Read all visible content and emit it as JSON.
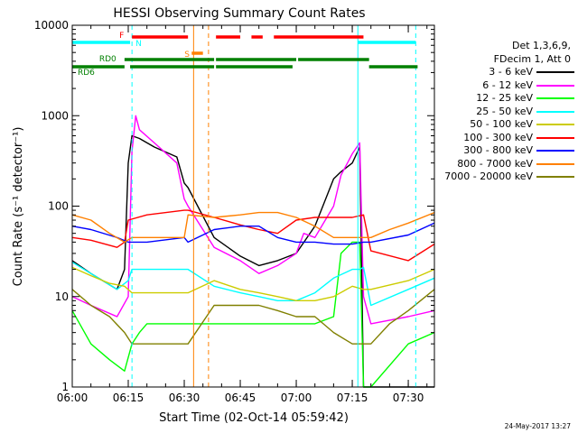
{
  "chart_data": {
    "type": "line",
    "title": "HESSI Observing Summary Count Rates",
    "xlabel": "Start Time (02-Oct-14 05:59:42)",
    "ylabel": "Count Rate (s⁻¹ detector⁻¹)",
    "y_scale": "log",
    "ylim": [
      1,
      10000
    ],
    "xlim_minutes": [
      0,
      97
    ],
    "x_ticks": [
      {
        "m": 0,
        "label": "06:00"
      },
      {
        "m": 15,
        "label": "06:15"
      },
      {
        "m": 30,
        "label": "06:30"
      },
      {
        "m": 45,
        "label": "06:45"
      },
      {
        "m": 60,
        "label": "07:00"
      },
      {
        "m": 75,
        "label": "07:15"
      },
      {
        "m": 90,
        "label": "07:30"
      }
    ],
    "y_ticks": [
      {
        "v": 1,
        "label": "1"
      },
      {
        "v": 10,
        "label": "10"
      },
      {
        "v": 100,
        "label": "100"
      },
      {
        "v": 1000,
        "label": "1000"
      },
      {
        "v": 10000,
        "label": "10000"
      }
    ],
    "legend_header": [
      "Det 1,3,6,9,",
      "FDecim 1, Att 0"
    ],
    "series": [
      {
        "name": "3 - 6 keV",
        "color": "#000000",
        "x": [
          0,
          5,
          12,
          14,
          15,
          16,
          18,
          22,
          28,
          30,
          31,
          38,
          45,
          50,
          55,
          60,
          65,
          70,
          72,
          75,
          77,
          78,
          79,
          80,
          81,
          90,
          97
        ],
        "y": [
          25,
          18,
          12,
          20,
          300,
          600,
          560,
          450,
          350,
          180,
          160,
          45,
          28,
          22,
          25,
          30,
          60,
          200,
          240,
          300,
          450,
          1,
          1,
          1,
          1,
          1,
          1
        ]
      },
      {
        "name": "6 - 12 keV",
        "color": "#ff00ff",
        "x": [
          0,
          5,
          12,
          15,
          16,
          17,
          18,
          22,
          28,
          30,
          31,
          38,
          45,
          50,
          55,
          60,
          62,
          65,
          70,
          72,
          75,
          77,
          78,
          80,
          90,
          97
        ],
        "y": [
          10,
          8,
          6,
          10,
          400,
          1000,
          700,
          500,
          300,
          120,
          100,
          35,
          25,
          18,
          22,
          30,
          50,
          45,
          100,
          220,
          380,
          500,
          10,
          5,
          6,
          7
        ]
      },
      {
        "name": "12 - 25 keV",
        "color": "#00ff00",
        "x": [
          0,
          5,
          10,
          14,
          16,
          18,
          20,
          30,
          31,
          38,
          45,
          50,
          55,
          60,
          65,
          70,
          72,
          75,
          77,
          78,
          80,
          90,
          97
        ],
        "y": [
          7,
          3,
          2,
          1.5,
          3,
          4,
          5,
          5,
          5,
          5,
          5,
          5,
          5,
          5,
          5,
          6,
          30,
          40,
          40,
          1,
          1,
          3,
          4
        ]
      },
      {
        "name": "25 - 50 keV",
        "color": "#00ffff",
        "x": [
          0,
          5,
          12,
          15,
          16,
          25,
          30,
          31,
          38,
          45,
          50,
          55,
          60,
          65,
          70,
          75,
          77,
          78,
          80,
          90,
          97
        ],
        "y": [
          24,
          18,
          12,
          15,
          20,
          20,
          20,
          20,
          13,
          11,
          10,
          9,
          9,
          11,
          16,
          20,
          20,
          21,
          8,
          12,
          16
        ]
      },
      {
        "name": "50 - 100 keV",
        "color": "#cccc00",
        "x": [
          0,
          5,
          10,
          14,
          16,
          20,
          30,
          31,
          38,
          45,
          50,
          55,
          60,
          65,
          70,
          75,
          78,
          80,
          90,
          97
        ],
        "y": [
          21,
          17,
          14,
          13,
          11,
          11,
          11,
          11,
          15,
          12,
          11,
          10,
          9,
          9,
          10,
          13,
          12,
          12,
          15,
          20
        ]
      },
      {
        "name": "100 - 300 keV",
        "color": "#ff0000",
        "x": [
          0,
          5,
          12,
          14,
          15,
          20,
          30,
          31,
          38,
          45,
          50,
          55,
          60,
          65,
          70,
          75,
          78,
          80,
          90,
          97
        ],
        "y": [
          45,
          42,
          35,
          40,
          70,
          80,
          90,
          90,
          75,
          62,
          55,
          50,
          70,
          75,
          75,
          75,
          80,
          32,
          25,
          38
        ]
      },
      {
        "name": "300 - 800 keV",
        "color": "#0000ff",
        "x": [
          0,
          5,
          12,
          15,
          16,
          20,
          30,
          31,
          38,
          45,
          50,
          55,
          60,
          65,
          70,
          75,
          78,
          80,
          90,
          97
        ],
        "y": [
          60,
          55,
          45,
          40,
          40,
          40,
          45,
          40,
          55,
          60,
          60,
          45,
          40,
          40,
          38,
          38,
          40,
          40,
          48,
          65
        ]
      },
      {
        "name": "800 - 7000 keV",
        "color": "#ff8000",
        "x": [
          0,
          5,
          10,
          14,
          16,
          20,
          25,
          30,
          31,
          38,
          45,
          50,
          55,
          60,
          65,
          70,
          75,
          78,
          80,
          85,
          90,
          97
        ],
        "y": [
          80,
          70,
          50,
          40,
          45,
          45,
          45,
          45,
          80,
          75,
          80,
          85,
          85,
          75,
          60,
          45,
          45,
          45,
          45,
          55,
          65,
          85
        ]
      },
      {
        "name": "7000 - 20000 keV",
        "color": "#808000",
        "x": [
          0,
          5,
          10,
          14,
          16,
          20,
          30,
          31,
          38,
          45,
          50,
          55,
          60,
          65,
          70,
          75,
          78,
          80,
          85,
          90,
          97
        ],
        "y": [
          12,
          8,
          6,
          4,
          3,
          3,
          3,
          3,
          8,
          8,
          8,
          7,
          6,
          6,
          4,
          3,
          3,
          3,
          5,
          7,
          12
        ]
      }
    ],
    "flag_bars": [
      {
        "label": "N",
        "color": "#00ffff",
        "segments": [
          [
            0,
            15.5
          ],
          [
            76.5,
            92
          ]
        ]
      },
      {
        "label": "S",
        "color": "#ff8000",
        "segments": [
          [
            32,
            35
          ]
        ]
      },
      {
        "label": "F",
        "color": "#ff0000",
        "segments": [
          [
            16,
            31
          ],
          [
            38.5,
            45
          ],
          [
            48,
            51
          ],
          [
            54,
            78
          ]
        ]
      },
      {
        "label": "RD0",
        "color": "#008000",
        "segments": [
          [
            14,
            38
          ],
          [
            38.5,
            60
          ],
          [
            60.5,
            79.5
          ]
        ]
      },
      {
        "label": "RD6",
        "color": "#008000",
        "segments": [
          [
            0,
            14
          ],
          [
            15.5,
            38
          ],
          [
            38.5,
            59
          ],
          [
            79.5,
            92.5
          ]
        ]
      }
    ],
    "vlines": [
      {
        "m": 0,
        "color": "#00ffff",
        "dash": false
      },
      {
        "m": 16,
        "color": "#00ffff",
        "dash": true
      },
      {
        "m": 32.5,
        "color": "#ff8000",
        "dash": false
      },
      {
        "m": 36.5,
        "color": "#ff8000",
        "dash": true
      },
      {
        "m": 76.5,
        "color": "#00ffff",
        "dash": false
      },
      {
        "m": 92,
        "color": "#00ffff",
        "dash": true
      }
    ]
  },
  "footer": {
    "date": "24-May-2017 13:27"
  }
}
